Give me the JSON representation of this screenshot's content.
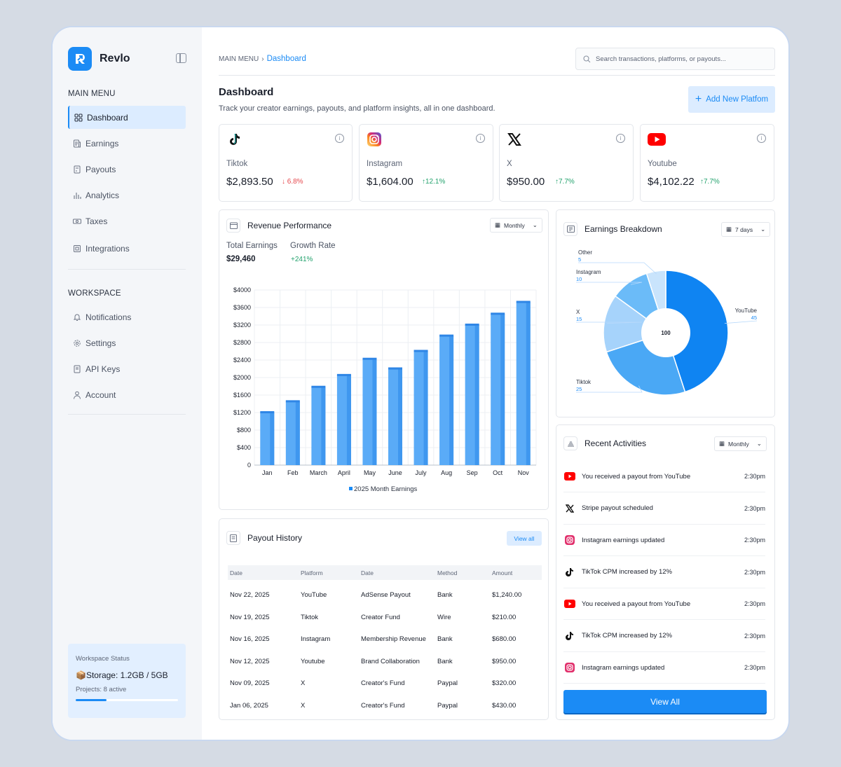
{
  "brand": {
    "name": "Revlo"
  },
  "sidebar": {
    "main_menu_title": "MAIN MENU",
    "main_items": [
      {
        "label": "Dashboard",
        "icon": "grid-icon"
      },
      {
        "label": "Earnings",
        "icon": "receipt-icon"
      },
      {
        "label": "Payouts",
        "icon": "wallet-icon"
      },
      {
        "label": "Analytics",
        "icon": "bar-chart-icon"
      },
      {
        "label": "Taxes",
        "icon": "tax-icon"
      },
      {
        "label": "Integrations",
        "icon": "puzzle-icon"
      }
    ],
    "workspace_title": "WORKSPACE",
    "workspace_items": [
      {
        "label": "Notifications",
        "icon": "bell-icon"
      },
      {
        "label": "Settings",
        "icon": "gear-icon"
      },
      {
        "label": "API Keys",
        "icon": "key-icon"
      },
      {
        "label": "Account",
        "icon": "user-icon"
      }
    ],
    "status": {
      "title": "Workspace Status",
      "storage": "📦Storage: 1.2GB / 5GB",
      "projects": "Projects: 8 active",
      "usage": 0.3
    }
  },
  "header": {
    "breadcrumb_root": "MAIN MENU",
    "breadcrumb_current": "Dashboard",
    "search_placeholder": "Search transactions, platforms, or payouts..."
  },
  "page": {
    "title": "Dashboard",
    "subtitle": "Track your creator earnings, payouts, and platform insights, all in one dashboard.",
    "add_button": "Add New Platfom"
  },
  "stats": [
    {
      "name": "Tiktok",
      "value": "$2,893.50",
      "change": "6.8%",
      "direction": "down"
    },
    {
      "name": "Instagram",
      "value": "$1,604.00",
      "change": "12.1%",
      "direction": "up"
    },
    {
      "name": "X",
      "value": "$950.00",
      "change": "7.7%",
      "direction": "up"
    },
    {
      "name": "Youtube",
      "value": "$4,102.22",
      "change": "7.7%",
      "direction": "up"
    }
  ],
  "revenue": {
    "title": "Revenue Performance",
    "period": "Monthly",
    "total_label": "Total Earnings",
    "total_value": "$29,460",
    "growth_label": "Growth Rate",
    "growth_value": "+241%"
  },
  "chart_data": [
    {
      "type": "bar",
      "categories": [
        "Jan",
        "Feb",
        "March",
        "April",
        "May",
        "June",
        "July",
        "Aug",
        "Sep",
        "Oct",
        "Nov"
      ],
      "series": [
        {
          "name": "2025 Month Earnings",
          "values": [
            1200,
            1450,
            1780,
            2050,
            2420,
            2200,
            2600,
            2950,
            3200,
            3450,
            3720
          ]
        }
      ],
      "yticks": [
        "0",
        "$400",
        "$800",
        "$1200",
        "$1600",
        "$2000",
        "$2400",
        "$2800",
        "$3200",
        "$3600",
        "$4000"
      ],
      "ylim": [
        0,
        4000
      ],
      "grid": true,
      "legend": "bottom",
      "color": "#5aabf7"
    },
    {
      "type": "pie",
      "center_label": "100",
      "labels": [
        "YouTube",
        "Tiktok",
        "X",
        "Instagram",
        "Other"
      ],
      "values": [
        45,
        25,
        15,
        10,
        5
      ],
      "colors": [
        "#0f84f2",
        "#4aa8f5",
        "#a6d3fb",
        "#6bbbf8",
        "#c9e4fc"
      ]
    }
  ],
  "breakdown": {
    "title": "Earnings Breakdown",
    "period": "7 days"
  },
  "payouts": {
    "title": "Payout History",
    "view_all": "View all",
    "columns": [
      "Date",
      "Platform",
      "Date",
      "Method",
      "Amount"
    ],
    "rows": [
      [
        "Nov 22, 2025",
        "YouTube",
        "AdSense Payout",
        "Bank",
        "$1,240.00"
      ],
      [
        "Nov 19, 2025",
        "Tiktok",
        "Creator Fund",
        "Wire",
        "$210.00"
      ],
      [
        "Nov 16, 2025",
        "Instagram",
        "Membership Revenue",
        "Bank",
        "$680.00"
      ],
      [
        "Nov 12, 2025",
        "Youtube",
        "Brand Collaboration",
        "Bank",
        "$950.00"
      ],
      [
        "Nov 09, 2025",
        "X",
        "Creator's Fund",
        "Paypal",
        "$320.00"
      ],
      [
        "Jan 06, 2025",
        "X",
        "Creator's Fund",
        "Paypal",
        "$430.00"
      ]
    ]
  },
  "activities": {
    "title": "Recent Activities",
    "period": "Monthly",
    "view_all": "View All",
    "items": [
      {
        "platform": "youtube",
        "text": "You received a payout from YouTube",
        "time": "2:30pm"
      },
      {
        "platform": "x",
        "text": "Stripe payout scheduled",
        "time": "2:30pm"
      },
      {
        "platform": "instagram",
        "text": "Instagram earnings updated",
        "time": "2:30pm"
      },
      {
        "platform": "tiktok",
        "text": "TikTok CPM increased by 12%",
        "time": "2:30pm"
      },
      {
        "platform": "youtube",
        "text": "You received a payout from YouTube",
        "time": "2:30pm"
      },
      {
        "platform": "tiktok",
        "text": "TikTok CPM increased by 12%",
        "time": "2:30pm"
      },
      {
        "platform": "instagram",
        "text": "Instagram earnings updated",
        "time": "2:30pm"
      }
    ]
  },
  "colors": {
    "accent": "#1b8bf5",
    "up": "#23a26d",
    "down": "#e5484d"
  }
}
